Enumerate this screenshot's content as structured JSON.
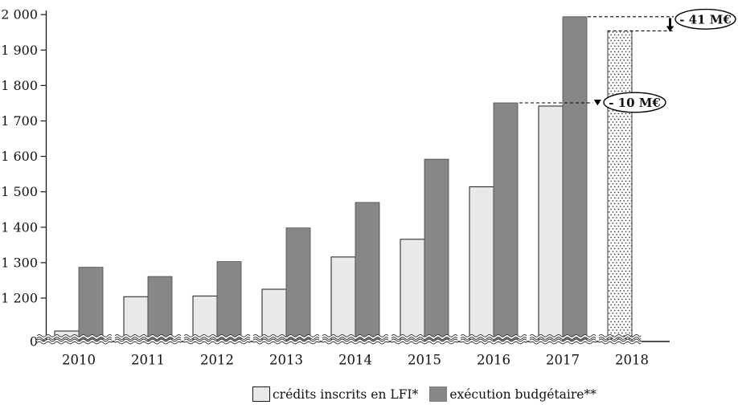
{
  "chart_data": {
    "type": "bar",
    "title": "",
    "xlabel": "",
    "ylabel": "",
    "unit": "M€",
    "categories": [
      "2010",
      "2011",
      "2012",
      "2013",
      "2014",
      "2015",
      "2016",
      "2017",
      "2018"
    ],
    "series": [
      {
        "name": "crédits inscrits en LFI*",
        "swatch": "lfi",
        "values": [
          1102,
          1204,
          1206,
          1225,
          1316,
          1366,
          1514,
          1742,
          1954
        ]
      },
      {
        "name": "exécution budgétaire**",
        "swatch": "exec",
        "values": [
          1287,
          1261,
          1303,
          1398,
          1470,
          1592,
          1751,
          1994,
          null
        ]
      }
    ],
    "ylim": [
      0,
      2000
    ],
    "y_axis_break": [
      0,
      1200
    ],
    "y_ticks": [
      {
        "value": 2000,
        "label": "2 000"
      },
      {
        "value": 1900,
        "label": "1 900"
      },
      {
        "value": 1800,
        "label": "1 800"
      },
      {
        "value": 1700,
        "label": "1 700"
      },
      {
        "value": 1600,
        "label": "1 600"
      },
      {
        "value": 1500,
        "label": "1 500"
      },
      {
        "value": 1400,
        "label": "1 400"
      },
      {
        "value": 1300,
        "label": "1 300"
      },
      {
        "value": 1200,
        "label": "1 200"
      },
      {
        "value": 0,
        "label": "0"
      }
    ],
    "grid": false,
    "legend_position": "bottom",
    "last_bar_style": "dotted-pattern",
    "annotations": [
      {
        "id": "minus-41",
        "label": "- 41 M€",
        "from_value": 1994,
        "to_value": 1954,
        "style": "arrow"
      },
      {
        "id": "minus-10",
        "label": "- 10 M€",
        "from_value": 1751,
        "to_value": 1742,
        "style": "pointer"
      }
    ]
  },
  "legend": {
    "items": [
      {
        "label": "crédits inscrits en LFI*",
        "swatch": "lfi"
      },
      {
        "label": "exécution budgétaire**",
        "swatch": "exec"
      }
    ]
  },
  "colors": {
    "lfi_fill": "#e9e9e9",
    "exec_fill": "#878787",
    "bar_border": "#1a1a1a",
    "exec_border": "#4a4a4a",
    "axis": "#1a1a1a",
    "dotted_bar_border": "#555555",
    "dot_color": "#222222",
    "annotation_stroke": "#000000",
    "annotation_fill": "#ffffff",
    "text": "#111111"
  }
}
